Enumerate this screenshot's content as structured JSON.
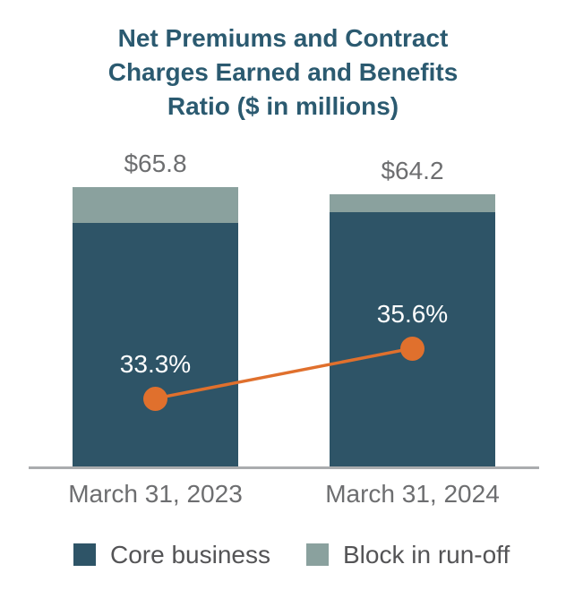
{
  "title": {
    "lines": [
      "Net Premiums and Contract",
      "Charges Earned and Benefits",
      "Ratio ($ in millions)"
    ]
  },
  "chart_data": {
    "type": "bar",
    "subtype": "stacked-bar-with-line",
    "title": "Net Premiums and Contract Charges Earned and Benefits Ratio ($ in millions)",
    "categories": [
      "March 31, 2023",
      "March 31, 2024"
    ],
    "stacked": true,
    "series": [
      {
        "name": "Core business",
        "values": [
          57.4,
          60.0
        ],
        "color": "#2e5467"
      },
      {
        "name": "Block in run-off",
        "values": [
          8.4,
          4.2
        ],
        "color": "#8aa19e"
      }
    ],
    "totals": [
      65.8,
      64.2
    ],
    "total_labels": [
      "$65.8",
      "$64.2"
    ],
    "line_series": {
      "name": "Benefits ratio",
      "values": [
        33.3,
        35.6
      ],
      "labels": [
        "33.3%",
        "35.6%"
      ],
      "color": "#e0702d"
    },
    "legend_position": "bottom",
    "grid": false
  },
  "legend": {
    "items": [
      {
        "label": "Core business",
        "color": "#2e5467"
      },
      {
        "label": "Block in run-off",
        "color": "#8aa19e"
      }
    ]
  },
  "colors": {
    "title": "#2b5a70",
    "label_gray": "#6d6e70",
    "legend_gray": "#545456",
    "axis_line": "#aaacae",
    "pct_label": "#ffffff",
    "background": "#ffffff"
  }
}
